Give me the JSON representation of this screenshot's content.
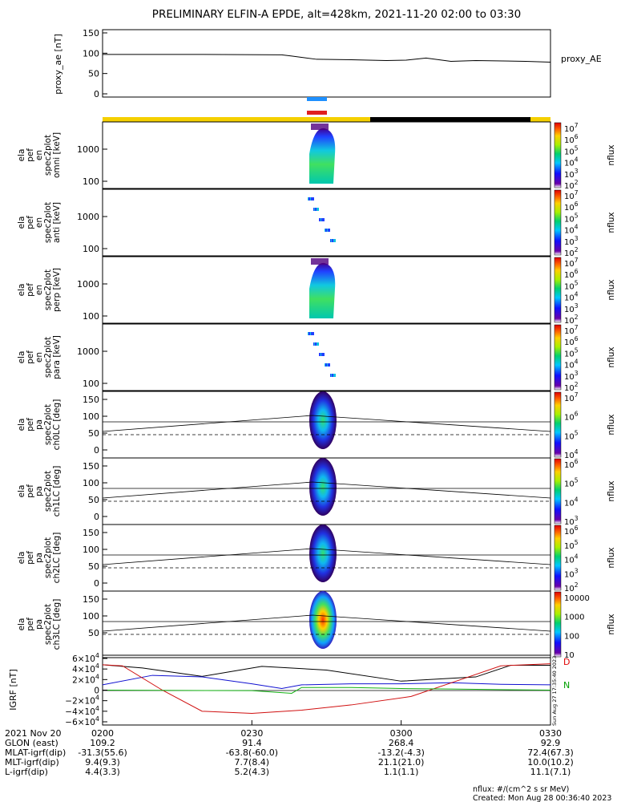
{
  "title": "PRELIMINARY ELFIN-A EPDE, alt=428km, 2021-11-20 02:00 to 03:30",
  "colors": {
    "blue_bar": "#1e90ff",
    "red_bar": "#e02020",
    "yellow_bar": "#f5d000",
    "dark_bar": "#000000"
  },
  "chart_data": [
    {
      "type": "line",
      "ylabel": "proxy_ae [nT]",
      "legend": "proxy_AE",
      "ylim": [
        0,
        150
      ],
      "yticks": [
        "150",
        "100",
        "50",
        "0"
      ],
      "series": [
        {
          "name": "proxy_AE",
          "x": [
            0,
            20,
            36,
            38,
            43,
            50,
            57,
            61,
            65,
            70,
            75,
            85,
            90
          ],
          "y": [
            97,
            97,
            96,
            93,
            85,
            84,
            82,
            83,
            88,
            80,
            82,
            80,
            78
          ]
        }
      ]
    },
    {
      "type": "heatmap",
      "ylabel": "ela pef en spec2plot omni [keV]",
      "yticks": [
        "1000",
        "100"
      ],
      "ylim_keV": [
        60,
        6500
      ],
      "colorbar": {
        "label": "nflux",
        "ticks": [
          "10^7",
          "10^6",
          "10^5",
          "10^4",
          "10^3",
          "10^2"
        ]
      }
    },
    {
      "type": "heatmap",
      "ylabel": "ela pef en spec2plot anti [keV]",
      "yticks": [
        "1000",
        "100"
      ],
      "ylim_keV": [
        60,
        6500
      ],
      "colorbar": {
        "label": "nflux",
        "ticks": [
          "10^7",
          "10^6",
          "10^5",
          "10^4",
          "10^3",
          "10^2"
        ]
      }
    },
    {
      "type": "heatmap",
      "ylabel": "ela pef en spec2plot perp [keV]",
      "yticks": [
        "1000",
        "100"
      ],
      "ylim_keV": [
        60,
        6500
      ],
      "colorbar": {
        "label": "nflux",
        "ticks": [
          "10^7",
          "10^6",
          "10^5",
          "10^4",
          "10^3",
          "10^2"
        ]
      }
    },
    {
      "type": "heatmap",
      "ylabel": "ela pef en spec2plot para [keV]",
      "yticks": [
        "1000",
        "100"
      ],
      "ylim_keV": [
        60,
        6500
      ],
      "colorbar": {
        "label": "nflux",
        "ticks": [
          "10^7",
          "10^6",
          "10^5",
          "10^4",
          "10^3",
          "10^2"
        ]
      }
    },
    {
      "type": "heatmap",
      "ylabel": "ela pef pa spec2plot ch0LC [deg]",
      "yticks": [
        "150",
        "100",
        "50",
        "0"
      ],
      "ylim": [
        0,
        180
      ],
      "colorbar": {
        "label": "nflux",
        "ticks": [
          "10^7",
          "10^6",
          "10^5",
          "10^4"
        ]
      }
    },
    {
      "type": "heatmap",
      "ylabel": "ela pef pa spec2plot ch1LC [deg]",
      "yticks": [
        "150",
        "100",
        "50",
        "0"
      ],
      "ylim": [
        0,
        180
      ],
      "colorbar": {
        "label": "nflux",
        "ticks": [
          "10^6",
          "10^5",
          "10^4",
          "10^3"
        ]
      }
    },
    {
      "type": "heatmap",
      "ylabel": "ela pef pa spec2plot ch2LC [deg]",
      "yticks": [
        "150",
        "100",
        "50",
        "0"
      ],
      "ylim": [
        0,
        180
      ],
      "colorbar": {
        "label": "nflux",
        "ticks": [
          "10^6",
          "10^5",
          "10^4",
          "10^3",
          "10^2"
        ]
      }
    },
    {
      "type": "heatmap",
      "ylabel": "ela pef pa spec2plot ch3LC [deg]",
      "yticks": [
        "150",
        "100",
        "50"
      ],
      "ylim": [
        0,
        180
      ],
      "colorbar": {
        "label": "nflux",
        "ticks": [
          "10000",
          "1000",
          "100",
          "10"
        ]
      }
    },
    {
      "type": "line",
      "ylabel": "IGRF [nT]",
      "ylim": [
        -60000,
        60000
      ],
      "yticks": [
        "6×10^4",
        "4×10^4",
        "2×10^4",
        "0",
        "−2×10^4",
        "−4×10^4",
        "−6×10^4"
      ],
      "legend_letters": [
        "D",
        "N"
      ],
      "series": [
        {
          "name": "black",
          "x": [
            0,
            8,
            20,
            32,
            45,
            60,
            75,
            82,
            90
          ],
          "y": [
            48000,
            42000,
            26000,
            45000,
            38000,
            17000,
            25000,
            47000,
            47000
          ]
        },
        {
          "name": "blue",
          "x": [
            0,
            10,
            20,
            30,
            36,
            40,
            50,
            60,
            70,
            80,
            90
          ],
          "y": [
            10000,
            28000,
            25000,
            12000,
            3000,
            10000,
            12000,
            12000,
            14000,
            11000,
            10000
          ]
        },
        {
          "name": "red",
          "x": [
            0,
            4,
            12,
            20,
            30,
            40,
            50,
            62,
            72,
            80,
            90
          ],
          "y": [
            48000,
            46000,
            0,
            -40000,
            -44000,
            -38000,
            -28000,
            -12000,
            20000,
            46000,
            50000
          ]
        },
        {
          "name": "green",
          "x": [
            0,
            30,
            38,
            40,
            50,
            60,
            70,
            80,
            90
          ],
          "y": [
            0,
            -1000,
            -6000,
            5000,
            5000,
            3000,
            2000,
            1000,
            0
          ]
        }
      ]
    }
  ],
  "time_axis": {
    "ticks": [
      "0200",
      "0230",
      "0300",
      "0330"
    ]
  },
  "ephemeris": [
    {
      "label": "2021 Nov 20",
      "values": [
        "",
        "",
        "",
        ""
      ]
    },
    {
      "label": "GLON (east)",
      "values": [
        "109.2",
        "91.4",
        "268.4",
        "92.9"
      ]
    },
    {
      "label": "MLAT-igrf(dip)",
      "values": [
        "-31.3(55.6)",
        "-63.8(-60.0)",
        "-13.2(-4.3)",
        "72.4(67.3)"
      ]
    },
    {
      "label": "MLT-igrf(dip)",
      "values": [
        "9.4(9.3)",
        "7.7(8.4)",
        "21.1(21.0)",
        "10.0(10.2)"
      ]
    },
    {
      "label": "L-igrf(dip)",
      "values": [
        "4.4(3.3)",
        "5.2(4.3)",
        "1.1(1.1)",
        "11.1(7.1)"
      ]
    }
  ],
  "footer": {
    "units": "nflux: #/(cm^2 s sr MeV)",
    "created": "Created: Mon Aug 28 00:36:40 2023"
  },
  "side_stamp": "Sun Aug 27 17:35:40 2023"
}
